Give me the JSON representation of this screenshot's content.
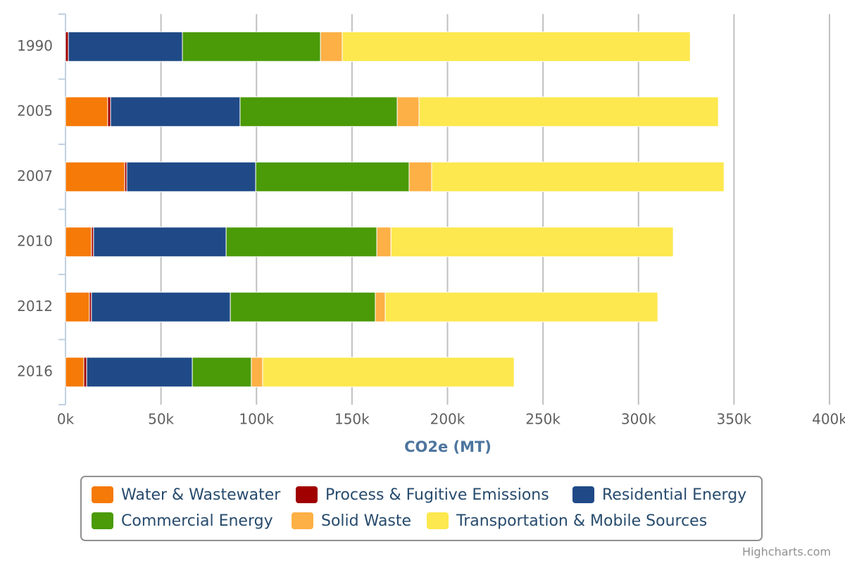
{
  "chart_data": {
    "type": "stacked-bar-horizontal",
    "xlabel": "CO2e (MT)",
    "credit": "Highcharts.com",
    "categories": [
      "1990",
      "2005",
      "2007",
      "2010",
      "2012",
      "2016"
    ],
    "series": [
      {
        "name": "Water & Wastewater",
        "color": "#f57a08",
        "values": [
          0,
          22.1,
          31.0,
          13.6,
          12.5,
          9.6
        ]
      },
      {
        "name": "Process & Fugitive Emissions",
        "color": "#a00000",
        "values": [
          1.5,
          1.5,
          1.1,
          1.1,
          1.1,
          1.5
        ]
      },
      {
        "name": "Residential Energy",
        "color": "#1f4a87",
        "values": [
          59.7,
          67.8,
          67.5,
          69.4,
          72.7,
          55.3
        ]
      },
      {
        "name": "Commercial Energy",
        "color": "#4b9a08",
        "values": [
          72.3,
          82.3,
          80.3,
          78.9,
          75.9,
          30.9
        ]
      },
      {
        "name": "Solid Waste",
        "color": "#fdb045",
        "values": [
          11.4,
          11.4,
          11.8,
          7.4,
          5.2,
          5.9
        ]
      },
      {
        "name": "Transportation & Mobile Sources",
        "color": "#fde84f",
        "values": [
          182.2,
          156.7,
          153.1,
          147.8,
          142.7,
          131.7
        ]
      }
    ],
    "xlim": [
      0,
      400
    ],
    "xticks": [
      {
        "value": 0,
        "label": "0k"
      },
      {
        "value": 50,
        "label": "50k"
      },
      {
        "value": 100,
        "label": "100k"
      },
      {
        "value": 150,
        "label": "150k"
      },
      {
        "value": 200,
        "label": "200k"
      },
      {
        "value": 250,
        "label": "250k"
      },
      {
        "value": 300,
        "label": "300k"
      },
      {
        "value": 350,
        "label": "350k"
      },
      {
        "value": 400,
        "label": "400k"
      }
    ],
    "grid": true
  }
}
